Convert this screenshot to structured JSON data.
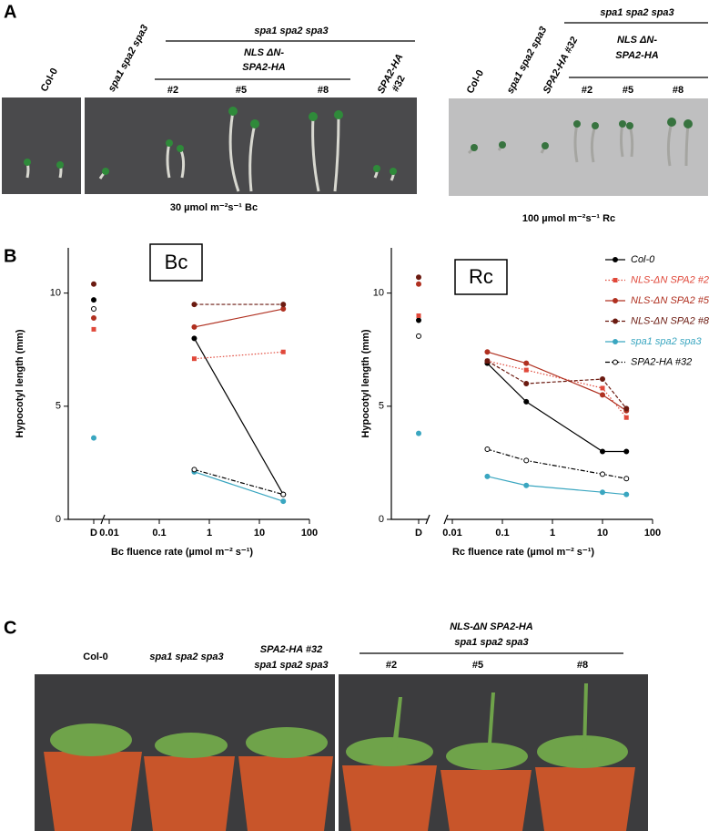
{
  "panels": {
    "a": {
      "letter": "A",
      "left": {
        "col0": "Col-0",
        "spa": "spa1 spa2 spa3",
        "group": "spa1 spa2 spa3",
        "nls1": "NLS ΔN-",
        "nls2": "SPA2-HA",
        "l2": "#2",
        "l5": "#5",
        "l8": "#8",
        "ha1": "SPA2-HA",
        "ha2": "#32",
        "caption": "30 µmol m⁻²s⁻¹ Bc"
      },
      "right": {
        "col0": "Col-0",
        "spa": "spa1 spa2 spa3",
        "ha": "SPA2-HA #32",
        "group": "spa1 spa2 spa3",
        "nls1": "NLS ΔN-",
        "nls2": "SPA2-HA",
        "l2": "#2",
        "l5": "#5",
        "l8": "#8",
        "caption": "100 µmol m⁻²s⁻¹ Rc"
      }
    },
    "b": {
      "letter": "B"
    },
    "c": {
      "letter": "C",
      "col0": "Col-0",
      "spa": "spa1 spa2 spa3",
      "ha1": "SPA2-HA #32",
      "ha2": "spa1 spa2 spa3",
      "nls1": "NLS-ΔN SPA2-HA",
      "nls2": "spa1 spa2 spa3",
      "l2": "#2",
      "l5": "#5",
      "l8": "#8"
    }
  },
  "chart_data": [
    {
      "type": "line",
      "title": "Bc",
      "x_label": "Bc fluence rate (µmol m⁻² s⁻¹)",
      "y_label": "Hypocotyl length (mm)",
      "x": [
        "D",
        0.5,
        30
      ],
      "log_x": true,
      "xlim": [
        0.01,
        100
      ],
      "xticks": [
        0.01,
        0.1,
        1,
        10,
        100
      ],
      "ylim": [
        0,
        12
      ],
      "yticks": [
        0,
        5,
        10
      ],
      "series": [
        {
          "color": "#000000",
          "dash": "solid",
          "marker": "circle",
          "values": [
            9.7,
            8.0,
            1.1
          ]
        },
        {
          "color": "#e0483a",
          "dash": "dotted",
          "marker": "square",
          "values": [
            8.4,
            7.1,
            7.4
          ]
        },
        {
          "color": "#b03020",
          "dash": "solid",
          "marker": "circle",
          "values": [
            8.9,
            8.5,
            9.3
          ]
        },
        {
          "color": "#6b1a10",
          "dash": "dashed",
          "marker": "circle",
          "values": [
            10.4,
            9.5,
            9.5
          ]
        },
        {
          "color": "#3aa6c0",
          "dash": "solid",
          "marker": "circle",
          "values": [
            3.6,
            2.1,
            0.8
          ]
        },
        {
          "color": "#000000",
          "dash": "dashdot",
          "marker": "circle-open",
          "values": [
            9.3,
            2.2,
            1.1
          ]
        }
      ]
    },
    {
      "type": "line",
      "title": "Rc",
      "x_label": "Rc fluence rate (µmol m⁻² s⁻¹)",
      "y_label": "Hypocotyl length (mm)",
      "x": [
        "D",
        0.05,
        0.3,
        10,
        30
      ],
      "log_x": true,
      "xlim": [
        0.01,
        100
      ],
      "xticks": [
        0.01,
        0.1,
        1,
        10,
        100
      ],
      "ylim": [
        0,
        12
      ],
      "yticks": [
        0,
        5,
        10
      ],
      "series": [
        {
          "name": "Col-0",
          "color": "#000000",
          "dash": "solid",
          "marker": "circle",
          "values": [
            8.8,
            6.9,
            5.2,
            3.0,
            3.0
          ]
        },
        {
          "name": "NLS-ΔN SPA2 #2",
          "color": "#e0483a",
          "dash": "dotted",
          "marker": "square",
          "values": [
            9.0,
            7.0,
            6.6,
            5.8,
            4.5
          ]
        },
        {
          "name": "NLS-ΔN SPA2 #5",
          "color": "#b03020",
          "dash": "solid",
          "marker": "circle",
          "values": [
            10.4,
            7.4,
            6.9,
            5.5,
            4.8
          ]
        },
        {
          "name": "NLS-ΔN SPA2 #8",
          "color": "#6b1a10",
          "dash": "dashed",
          "marker": "circle",
          "values": [
            10.7,
            7.0,
            6.0,
            6.2,
            4.9
          ]
        },
        {
          "name": "spa1 spa2 spa3",
          "color": "#3aa6c0",
          "dash": "solid",
          "marker": "circle",
          "values": [
            3.8,
            1.9,
            1.5,
            1.2,
            1.1
          ]
        },
        {
          "name": "SPA2-HA #32",
          "color": "#000000",
          "dash": "dashdot",
          "marker": "circle-open",
          "values": [
            8.1,
            3.1,
            2.6,
            2.0,
            1.8
          ]
        }
      ]
    }
  ]
}
